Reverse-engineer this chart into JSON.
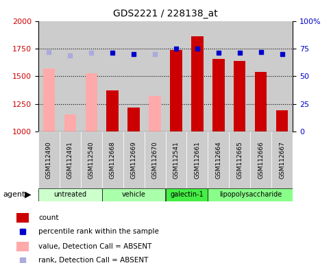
{
  "title": "GDS2221 / 228138_at",
  "samples": [
    "GSM112490",
    "GSM112491",
    "GSM112540",
    "GSM112668",
    "GSM112669",
    "GSM112670",
    "GSM112541",
    "GSM112661",
    "GSM112664",
    "GSM112665",
    "GSM112666",
    "GSM112667"
  ],
  "absent": [
    true,
    true,
    true,
    false,
    false,
    true,
    false,
    false,
    false,
    false,
    false,
    false
  ],
  "bar_values": [
    1570,
    1155,
    1530,
    1370,
    1215,
    1325,
    1740,
    1860,
    1660,
    1640,
    1540,
    1190
  ],
  "rank_values_pct": [
    72,
    69,
    71,
    71,
    70,
    70,
    75,
    75,
    71,
    71,
    72,
    70
  ],
  "rank_absent": [
    true,
    true,
    true,
    false,
    false,
    true,
    false,
    false,
    false,
    false,
    false,
    false
  ],
  "ylim_left": [
    1000,
    2000
  ],
  "ylim_right": [
    0,
    100
  ],
  "yticks_left": [
    1000,
    1250,
    1500,
    1750,
    2000
  ],
  "yticks_right": [
    0,
    25,
    50,
    75,
    100
  ],
  "hlines": [
    1250,
    1500,
    1750
  ],
  "group_boundaries": [
    0,
    3,
    6,
    8,
    12
  ],
  "group_labels": [
    "untreated",
    "vehicle",
    "galectin-1",
    "lipopolysaccharide"
  ],
  "group_colors": [
    "#ccffcc",
    "#aaffaa",
    "#44ee44",
    "#88ff88"
  ],
  "bar_color_present": "#cc0000",
  "bar_color_absent": "#ffaaaa",
  "rank_color_present": "#0000cc",
  "rank_color_absent": "#aaaadd",
  "col_bg_color": "#cccccc",
  "legend_items": [
    {
      "label": "count",
      "color": "#cc0000",
      "type": "rect"
    },
    {
      "label": "percentile rank within the sample",
      "color": "#0000cc",
      "type": "square"
    },
    {
      "label": "value, Detection Call = ABSENT",
      "color": "#ffaaaa",
      "type": "rect"
    },
    {
      "label": "rank, Detection Call = ABSENT",
      "color": "#aaaadd",
      "type": "square"
    }
  ]
}
